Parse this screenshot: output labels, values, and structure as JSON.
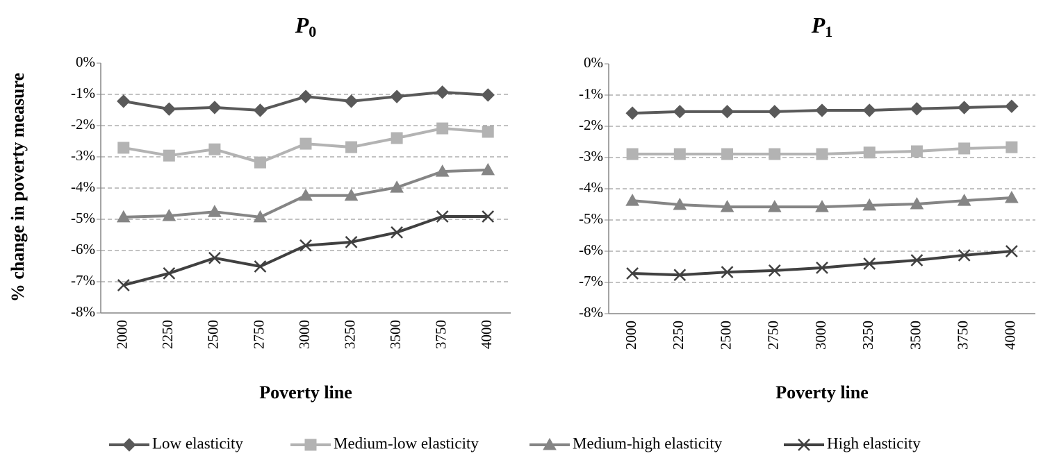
{
  "y_label": "% change in poverty measure",
  "chart_data": [
    {
      "type": "line",
      "title": "P",
      "title_subscript": "0",
      "x_label": "Poverty line",
      "categories": [
        "2000",
        "2250",
        "2500",
        "2750",
        "3000",
        "3250",
        "3500",
        "3750",
        "4000"
      ],
      "ylim": [
        -8,
        0
      ],
      "yticks": [
        {
          "value": 0,
          "label": "0%"
        },
        {
          "value": -1,
          "label": "-1%"
        },
        {
          "value": -2,
          "label": "-2%"
        },
        {
          "value": -3,
          "label": "-3%"
        },
        {
          "value": -4,
          "label": "-4%"
        },
        {
          "value": -5,
          "label": "-5%"
        },
        {
          "value": -6,
          "label": "-6%"
        },
        {
          "value": -7,
          "label": "-7%"
        },
        {
          "value": -8,
          "label": "-8%"
        }
      ],
      "grid": true,
      "series": [
        {
          "name": "Low elasticity",
          "color": "#595959",
          "marker": "diamond",
          "values": [
            -1.22,
            -1.47,
            -1.42,
            -1.51,
            -1.07,
            -1.22,
            -1.07,
            -0.93,
            -1.02
          ]
        },
        {
          "name": "Medium-low elasticity",
          "color": "#b3b3b3",
          "marker": "square",
          "values": [
            -2.71,
            -2.96,
            -2.76,
            -3.18,
            -2.58,
            -2.69,
            -2.4,
            -2.09,
            -2.2
          ]
        },
        {
          "name": "Medium-high elasticity",
          "color": "#858585",
          "marker": "triangle",
          "values": [
            -4.93,
            -4.89,
            -4.76,
            -4.93,
            -4.24,
            -4.24,
            -3.98,
            -3.47,
            -3.42
          ]
        },
        {
          "name": "High elasticity",
          "color": "#404040",
          "marker": "x",
          "values": [
            -7.11,
            -6.73,
            -6.24,
            -6.51,
            -5.84,
            -5.73,
            -5.42,
            -4.91,
            -4.91
          ]
        }
      ]
    },
    {
      "type": "line",
      "title": "P",
      "title_subscript": "1",
      "x_label": "Poverty line",
      "categories": [
        "2000",
        "2250",
        "2500",
        "2750",
        "3000",
        "3250",
        "3500",
        "3750",
        "4000"
      ],
      "ylim": [
        -8,
        0
      ],
      "yticks": [
        {
          "value": 0,
          "label": "0%"
        },
        {
          "value": -1,
          "label": "-1%"
        },
        {
          "value": -2,
          "label": "-2%"
        },
        {
          "value": -3,
          "label": "-3%"
        },
        {
          "value": -4,
          "label": "-4%"
        },
        {
          "value": -5,
          "label": "-5%"
        },
        {
          "value": -6,
          "label": "-6%"
        },
        {
          "value": -7,
          "label": "-7%"
        },
        {
          "value": -8,
          "label": "-8%"
        }
      ],
      "grid": true,
      "series": [
        {
          "color": "#595959",
          "marker": "diamond",
          "values": [
            -1.58,
            -1.53,
            -1.53,
            -1.53,
            -1.49,
            -1.49,
            -1.44,
            -1.4,
            -1.36
          ]
        },
        {
          "color": "#b3b3b3",
          "marker": "square",
          "values": [
            -2.89,
            -2.89,
            -2.89,
            -2.89,
            -2.89,
            -2.84,
            -2.8,
            -2.71,
            -2.67
          ]
        },
        {
          "color": "#858585",
          "marker": "triangle",
          "values": [
            -4.38,
            -4.51,
            -4.58,
            -4.58,
            -4.58,
            -4.53,
            -4.49,
            -4.38,
            -4.29
          ]
        },
        {
          "color": "#404040",
          "marker": "x",
          "values": [
            -6.71,
            -6.76,
            -6.67,
            -6.62,
            -6.53,
            -6.4,
            -6.29,
            -6.13,
            -6.0
          ]
        }
      ]
    }
  ]
}
